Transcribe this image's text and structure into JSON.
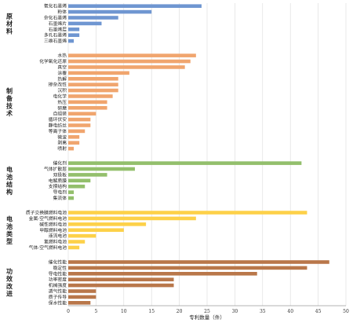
{
  "chart_data": {
    "type": "bar",
    "orientation": "horizontal",
    "xlabel": "专利数量（件）",
    "xlim": [
      0,
      50
    ],
    "xticks": [
      0,
      5,
      10,
      15,
      20,
      25,
      30,
      35,
      40,
      45,
      50
    ],
    "grid": true,
    "groups": [
      {
        "name": "原材料",
        "color": "#6f96d1",
        "categories": [
          "氧化石墨烯",
          "粉体",
          "杂化石墨烯",
          "石墨烯片",
          "石墨烯层",
          "多孔石墨烯",
          "三维石墨烯"
        ],
        "values": [
          24,
          15,
          9,
          6,
          2,
          2,
          1
        ]
      },
      {
        "name": "制备技术",
        "color": "#f0a56e",
        "categories": [
          "水热",
          "化学氧化还原",
          "真空",
          "涂覆",
          "热解",
          "掺杂改性",
          "沉积",
          "电化学",
          "热压",
          "研磨",
          "自组装",
          "循环伏安",
          "静电纺丝",
          "等离子体",
          "微波",
          "剥离",
          "喷射"
        ],
        "values": [
          23,
          22,
          21,
          11,
          9,
          9,
          9,
          8,
          7,
          7,
          5,
          4,
          4,
          3,
          2,
          2,
          1
        ]
      },
      {
        "name": "电池结构",
        "color": "#93bf6c",
        "categories": [
          "催化剂",
          "气体扩散层",
          "双极板",
          "电解质膜",
          "支撑结构",
          "导电剂",
          "集流体"
        ],
        "values": [
          42,
          12,
          7,
          4,
          3,
          1,
          1
        ]
      },
      {
        "name": "电池类型",
        "color": "#fdd149",
        "categories": [
          "质子交换膜燃料电池",
          "金属-空气燃料电池",
          "碱性燃料电池",
          "甲醇燃料电池",
          "液流电池",
          "氢燃料电池",
          "气体-空气燃料电池"
        ],
        "values": [
          43,
          23,
          14,
          10,
          5,
          3,
          2
        ]
      },
      {
        "name": "功效改进",
        "color": "#b9774a",
        "categories": [
          "催化性能",
          "稳定性",
          "导电性能",
          "功率密度",
          "机械强度",
          "透气性能",
          "质子传导",
          "保水性能"
        ],
        "values": [
          47,
          43,
          34,
          19,
          19,
          5,
          5,
          4
        ]
      }
    ]
  }
}
